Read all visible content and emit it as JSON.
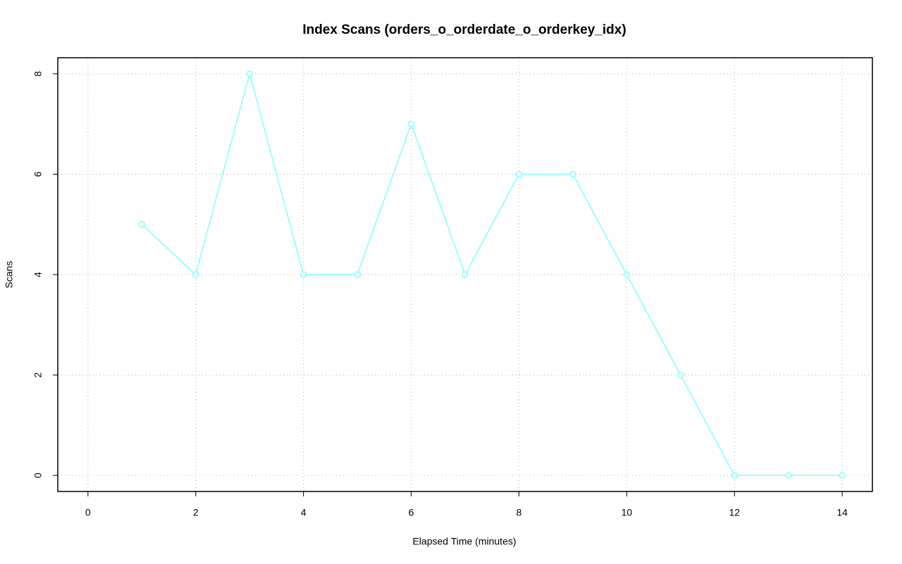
{
  "chart_data": {
    "type": "line",
    "title": "Index Scans (orders_o_orderdate_o_orderkey_idx)",
    "x_label": "Elapsed Time (minutes)",
    "y_label": "Scans",
    "x": [
      1,
      2,
      3,
      4,
      5,
      6,
      7,
      8,
      9,
      10,
      11,
      12,
      13,
      14
    ],
    "values": [
      5,
      4,
      8,
      4,
      4,
      7,
      4,
      6,
      6,
      4,
      2,
      0,
      0,
      0
    ],
    "color": "#7fffff",
    "xlim": [
      -0.56,
      14.56
    ],
    "xticks": [
      0,
      2,
      4,
      6,
      8,
      10,
      12,
      14
    ],
    "ylim": [
      -0.32,
      8.32
    ],
    "yticks": [
      0,
      2,
      4,
      6,
      8
    ],
    "grid": true,
    "markers": true
  }
}
